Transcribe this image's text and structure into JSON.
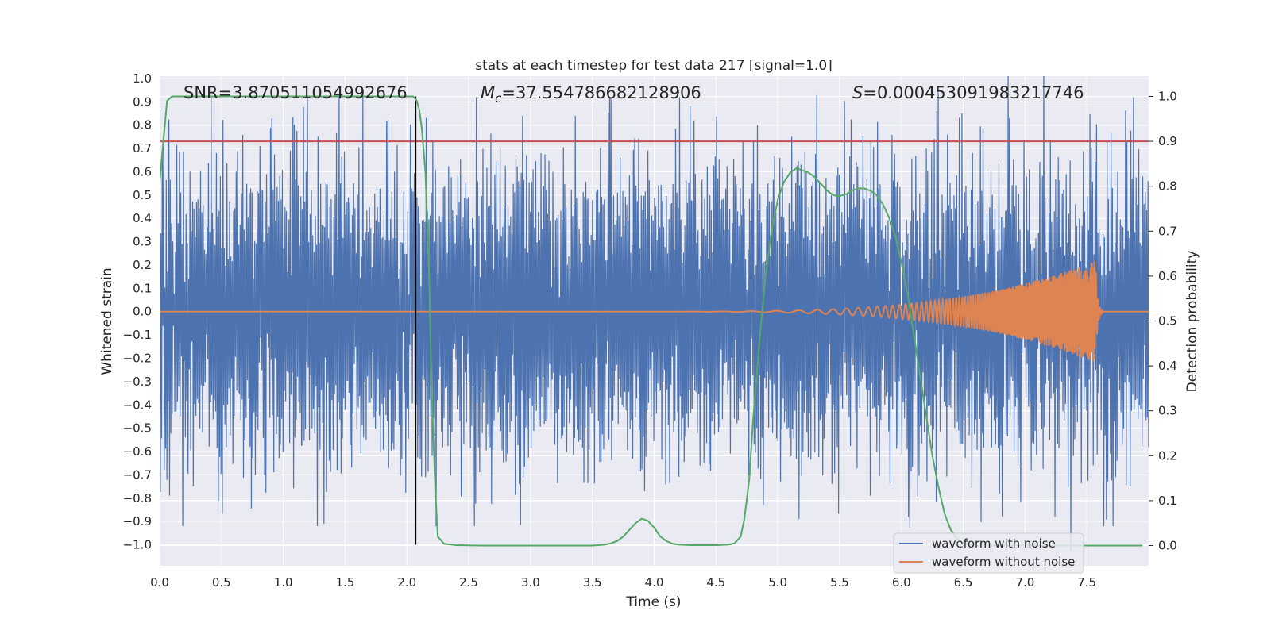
{
  "chart_data": {
    "type": "line",
    "title": "stats at each timestep for test data 217 [signal=1.0]",
    "xlabel": "Time (s)",
    "ylabel_left": "Whitened strain",
    "ylabel_right": "Detection probability",
    "xlim": [
      0.0,
      8.0
    ],
    "ylim_left": [
      -1.09,
      1.01
    ],
    "ylim_right": [
      -0.045,
      1.045
    ],
    "x_ticks": [
      "0.0",
      "0.5",
      "1.0",
      "1.5",
      "2.0",
      "2.5",
      "3.0",
      "3.5",
      "4.0",
      "4.5",
      "5.0",
      "5.5",
      "6.0",
      "6.5",
      "7.0",
      "7.5"
    ],
    "left_ticks": [
      "1.0",
      "0.9",
      "0.8",
      "0.7",
      "0.6",
      "0.5",
      "0.4",
      "0.3",
      "0.2",
      "0.1",
      "0.0",
      "−0.1",
      "−0.2",
      "−0.3",
      "−0.4",
      "−0.5",
      "−0.6",
      "−0.7",
      "−0.8",
      "−0.9",
      "−1.0"
    ],
    "right_ticks": [
      "1.0",
      "0.9",
      "0.8",
      "0.7",
      "0.6",
      "0.5",
      "0.4",
      "0.3",
      "0.2",
      "0.1",
      "0.0"
    ],
    "annotations": {
      "snr": "SNR=3.870511054992676",
      "mc_symbol": "M",
      "mc_sub": "c",
      "mc_value": "=37.554786682128906",
      "s_symbol": "S",
      "s_value": "=0.000453091983217746"
    },
    "threshold_probability": 0.9,
    "event_time": 2.07,
    "noise_envelope": {
      "max_amplitude": 0.92,
      "seed": 217,
      "samples": 1500
    },
    "chirp": {
      "start": 3.5,
      "merger": 7.57,
      "peak_amplitude": 0.22
    },
    "series": [
      {
        "name": "waveform with noise",
        "color": "#4c72b0",
        "axis": "left"
      },
      {
        "name": "waveform without noise",
        "color": "#dd8452",
        "axis": "left"
      },
      {
        "name": "detection probability",
        "color": "#55a868",
        "axis": "right",
        "x": [
          0.0,
          0.03,
          0.06,
          0.1,
          0.15,
          0.2,
          0.5,
          1.0,
          1.5,
          2.0,
          2.05,
          2.08,
          2.1,
          2.12,
          2.15,
          2.18,
          2.2,
          2.23,
          2.25,
          2.3,
          2.4,
          2.6,
          3.0,
          3.5,
          3.6,
          3.65,
          3.7,
          3.75,
          3.8,
          3.85,
          3.9,
          3.95,
          4.0,
          4.05,
          4.1,
          4.15,
          4.2,
          4.3,
          4.5,
          4.6,
          4.65,
          4.7,
          4.73,
          4.77,
          4.8,
          4.85,
          4.9,
          4.95,
          5.0,
          5.05,
          5.1,
          5.15,
          5.2,
          5.25,
          5.3,
          5.35,
          5.4,
          5.45,
          5.5,
          5.55,
          5.6,
          5.65,
          5.7,
          5.75,
          5.8,
          5.85,
          5.9,
          5.95,
          6.0,
          6.05,
          6.1,
          6.15,
          6.2,
          6.25,
          6.3,
          6.35,
          6.4,
          6.45,
          6.5,
          6.55,
          6.6,
          6.7,
          6.8,
          7.0,
          7.5,
          7.95
        ],
        "values": [
          0.81,
          0.9,
          0.99,
          1.0,
          1.0,
          1.0,
          1.0,
          1.0,
          1.0,
          1.0,
          1.0,
          0.99,
          0.97,
          0.93,
          0.83,
          0.6,
          0.35,
          0.12,
          0.02,
          0.004,
          0.001,
          0.0,
          0.0,
          0.0,
          0.002,
          0.005,
          0.01,
          0.02,
          0.035,
          0.05,
          0.06,
          0.055,
          0.04,
          0.02,
          0.01,
          0.004,
          0.002,
          0.001,
          0.001,
          0.002,
          0.005,
          0.02,
          0.06,
          0.15,
          0.28,
          0.45,
          0.6,
          0.7,
          0.77,
          0.81,
          0.83,
          0.84,
          0.835,
          0.83,
          0.82,
          0.805,
          0.79,
          0.78,
          0.778,
          0.782,
          0.79,
          0.795,
          0.795,
          0.79,
          0.78,
          0.76,
          0.73,
          0.69,
          0.63,
          0.56,
          0.47,
          0.38,
          0.29,
          0.2,
          0.13,
          0.07,
          0.035,
          0.015,
          0.006,
          0.002,
          0.0,
          0.0,
          0.0,
          0.0,
          0.0,
          0.0
        ]
      }
    ]
  }
}
